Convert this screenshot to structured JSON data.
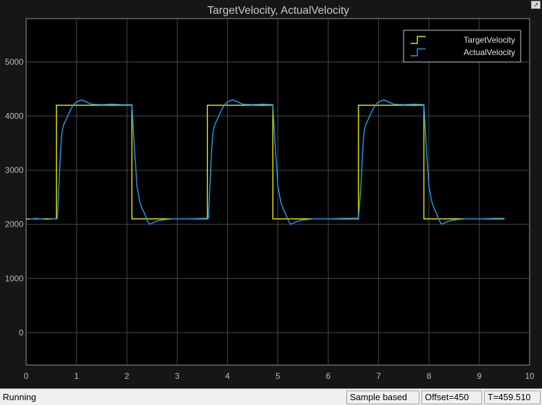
{
  "chart_data": {
    "type": "line",
    "title": "TargetVelocity, ActualVelocity",
    "xlim": [
      0,
      10
    ],
    "ylim": [
      -600,
      5800
    ],
    "x_ticks": [
      0,
      1,
      2,
      3,
      4,
      5,
      6,
      7,
      8,
      9,
      10
    ],
    "y_ticks": [
      0,
      1000,
      2000,
      3000,
      4000,
      5000
    ],
    "grid": true,
    "legend_position": "top-right",
    "series": [
      {
        "name": "TargetVelocity",
        "color": "#e6e600",
        "x": [
          0,
          0.6,
          0.6,
          2.1,
          2.1,
          3.6,
          3.6,
          4.9,
          4.9,
          6.6,
          6.6,
          7.9,
          7.9,
          9.5
        ],
        "y": [
          2100,
          2100,
          4200,
          4200,
          2100,
          2100,
          4200,
          4200,
          2100,
          2100,
          4200,
          4200,
          2100,
          2100
        ]
      },
      {
        "name": "ActualVelocity",
        "color": "#1e9be8",
        "x": [
          0,
          0.2,
          0.4,
          0.55,
          0.62,
          0.65,
          0.68,
          0.7,
          0.72,
          0.75,
          0.8,
          0.85,
          0.9,
          0.95,
          1.0,
          1.1,
          1.2,
          1.3,
          1.5,
          1.7,
          1.9,
          2.1,
          2.15,
          2.18,
          2.2,
          2.23,
          2.26,
          2.3,
          2.35,
          2.4,
          2.45,
          2.5,
          2.6,
          2.7,
          2.9,
          3.2,
          3.5,
          3.62,
          3.65,
          3.68,
          3.7,
          3.72,
          3.75,
          3.8,
          3.85,
          3.9,
          3.95,
          4.0,
          4.1,
          4.2,
          4.3,
          4.5,
          4.7,
          4.9,
          4.95,
          4.98,
          5.0,
          5.03,
          5.06,
          5.1,
          5.15,
          5.2,
          5.25,
          5.3,
          5.4,
          5.5,
          5.7,
          6.0,
          6.3,
          6.6,
          6.65,
          6.68,
          6.7,
          6.72,
          6.75,
          6.8,
          6.85,
          6.9,
          6.95,
          7.0,
          7.1,
          7.2,
          7.3,
          7.5,
          7.7,
          7.9,
          7.95,
          7.98,
          8.0,
          8.03,
          8.06,
          8.1,
          8.15,
          8.2,
          8.25,
          8.3,
          8.4,
          8.5,
          8.7,
          9.0,
          9.3,
          9.5
        ],
        "y": [
          2090,
          2110,
          2090,
          2100,
          2110,
          2700,
          3300,
          3600,
          3750,
          3850,
          3950,
          4050,
          4150,
          4220,
          4260,
          4300,
          4260,
          4220,
          4210,
          4220,
          4210,
          4210,
          3400,
          3000,
          2700,
          2550,
          2400,
          2300,
          2200,
          2080,
          2000,
          2020,
          2060,
          2080,
          2100,
          2100,
          2110,
          2110,
          2700,
          3300,
          3600,
          3750,
          3850,
          3950,
          4050,
          4150,
          4220,
          4260,
          4300,
          4260,
          4220,
          4210,
          4220,
          4210,
          3400,
          3000,
          2700,
          2550,
          2400,
          2300,
          2200,
          2080,
          2000,
          2020,
          2060,
          2080,
          2100,
          2100,
          2110,
          2110,
          2700,
          3300,
          3600,
          3750,
          3850,
          3950,
          4050,
          4150,
          4220,
          4260,
          4300,
          4260,
          4220,
          4210,
          4220,
          4210,
          3400,
          3000,
          2700,
          2550,
          2400,
          2300,
          2200,
          2080,
          2000,
          2020,
          2060,
          2080,
          2100,
          2100,
          2110,
          2110
        ]
      }
    ]
  },
  "toolbar": {
    "undock_icon": "undock-arrow-icon"
  },
  "status": {
    "text": "Running",
    "mode": "Sample based",
    "offset": "Offset=450",
    "time": "T=459.510"
  }
}
